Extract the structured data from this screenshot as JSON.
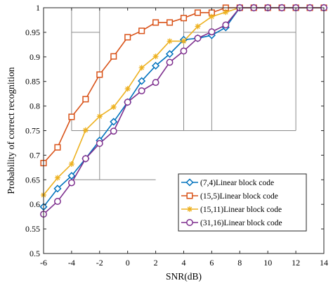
{
  "chart_data": {
    "type": "line",
    "xlabel": "SNR(dB)",
    "ylabel": "Probability of correct recognition",
    "xlim": [
      -6,
      14
    ],
    "ylim": [
      0.5,
      1
    ],
    "x_ticks": [
      "-6",
      "-4",
      "-2",
      "0",
      "2",
      "4",
      "6",
      "8",
      "10",
      "12",
      "14"
    ],
    "y_ticks": [
      "0.5",
      "0.55",
      "0.6",
      "0.65",
      "0.7",
      "0.75",
      "0.8",
      "0.85",
      "0.9",
      "0.95",
      "1"
    ],
    "grid": "partial",
    "legend_position": "bottom-right",
    "x": [
      -6,
      -5,
      -4,
      -3,
      -2,
      -1,
      0,
      1,
      2,
      3,
      4,
      5,
      6,
      7,
      8,
      9,
      10,
      11,
      12,
      13,
      14
    ],
    "series": [
      {
        "name": "(7,4)Linear block code",
        "color": "#0072BD",
        "marker": "diamond",
        "values": [
          0.595,
          0.632,
          0.658,
          0.693,
          0.73,
          0.768,
          0.808,
          0.851,
          0.882,
          0.906,
          0.935,
          0.938,
          0.944,
          0.96,
          1.0,
          1.0,
          1.0,
          1.0,
          1.0,
          1.0,
          1.0
        ]
      },
      {
        "name": "(15,5)Linear block code",
        "color": "#D95319",
        "marker": "square",
        "values": [
          0.684,
          0.716,
          0.778,
          0.814,
          0.864,
          0.901,
          0.94,
          0.953,
          0.97,
          0.97,
          0.979,
          0.99,
          0.99,
          1.0,
          1.0,
          1.0,
          1.0,
          1.0,
          1.0,
          1.0,
          1.0
        ]
      },
      {
        "name": "(15,11)Linear block code",
        "color": "#EDB120",
        "marker": "star",
        "values": [
          0.619,
          0.654,
          0.682,
          0.751,
          0.779,
          0.798,
          0.835,
          0.878,
          0.901,
          0.932,
          0.932,
          0.962,
          0.982,
          0.991,
          1.0,
          1.0,
          1.0,
          1.0,
          1.0,
          1.0,
          1.0
        ]
      },
      {
        "name": "(31,16)Linear block code",
        "color": "#7E2F8E",
        "marker": "circle",
        "values": [
          0.58,
          0.606,
          0.644,
          0.693,
          0.724,
          0.749,
          0.808,
          0.831,
          0.848,
          0.889,
          0.912,
          0.938,
          0.951,
          0.965,
          1.0,
          1.0,
          1.0,
          1.0,
          1.0,
          1.0,
          1.0
        ]
      }
    ]
  }
}
